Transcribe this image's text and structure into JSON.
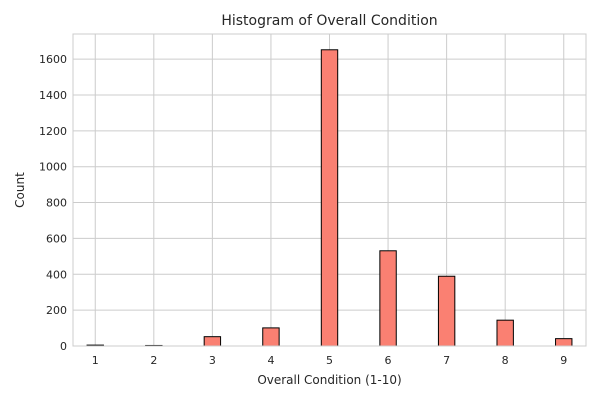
{
  "chart_data": {
    "type": "bar",
    "title": "Histogram of Overall Condition",
    "xlabel": "Overall Condition (1-10)",
    "ylabel": "Count",
    "x": [
      1,
      2,
      3,
      4,
      5,
      6,
      7,
      8,
      9
    ],
    "values": [
      5,
      3,
      52,
      101,
      1652,
      531,
      389,
      144,
      41
    ],
    "xlim": [
      0.62,
      9.38
    ],
    "ylim": [
      0,
      1740
    ],
    "xticks": [
      1,
      2,
      3,
      4,
      5,
      6,
      7,
      8,
      9
    ],
    "yticks": [
      0,
      200,
      400,
      600,
      800,
      1000,
      1200,
      1400,
      1600
    ],
    "bar_color": "#fa8072",
    "edge_color": "#000000",
    "grid": true
  }
}
